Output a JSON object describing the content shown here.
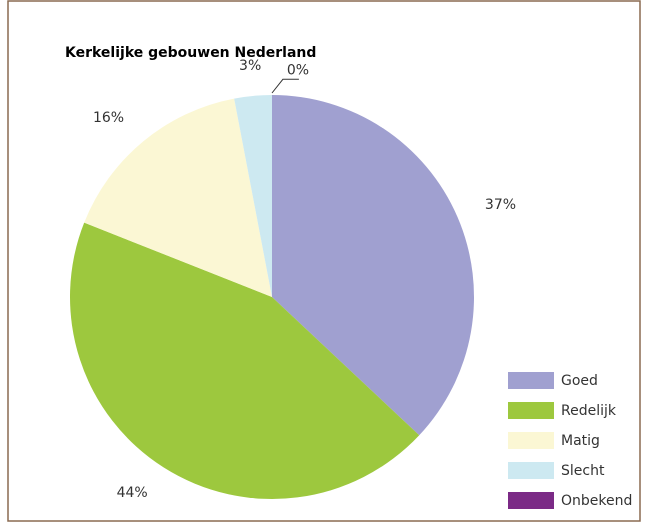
{
  "chart_data": {
    "type": "pie",
    "title": "Kerkelijke gebouwen Nederland",
    "categories": [
      "Goed",
      "Redelijk",
      "Matig",
      "Slecht",
      "Onbekend"
    ],
    "values": [
      37,
      44,
      16,
      3,
      0
    ],
    "value_labels": [
      "37%",
      "44%",
      "16%",
      "3%",
      "0%"
    ],
    "colors": [
      "#a0a0d0",
      "#9dc83e",
      "#fbf7d4",
      "#cde9f1",
      "#7b2a86"
    ],
    "legend": "right"
  }
}
